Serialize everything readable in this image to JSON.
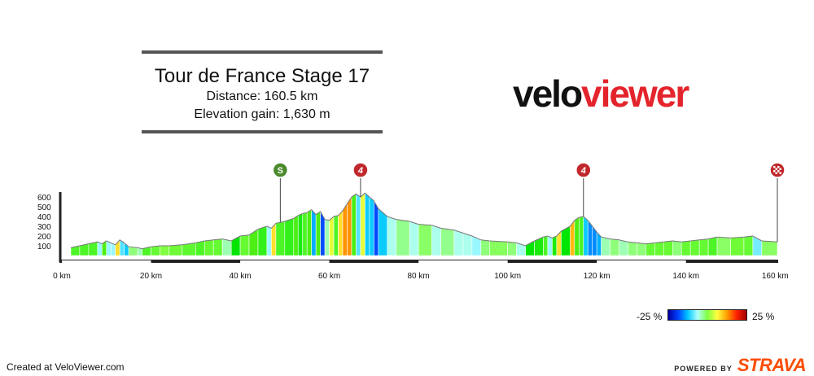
{
  "title": "Tour de France Stage 17",
  "distance_label": "Distance: 160.5 km",
  "elevation_label": "Elevation gain: 1,630 m",
  "logo": {
    "part1": "velo",
    "part2": "viewer"
  },
  "footer": {
    "created": "Created at VeloViewer.com",
    "powered_by": "POWERED BY",
    "brand": "STRAVA"
  },
  "legend": {
    "low": "-25 %",
    "high": "25 %"
  },
  "colors": {
    "accent": "#e4242c",
    "strava": "#fc4c02",
    "sprint": "#4a8a2c",
    "climb": "#c0282b"
  },
  "chart_data": {
    "type": "area",
    "title": "Tour de France Stage 17",
    "xlabel": "",
    "ylabel": "",
    "x_unit": "km",
    "xlim": [
      0,
      160.5
    ],
    "ylim": [
      0,
      650
    ],
    "x_ticks": [
      0,
      20,
      40,
      60,
      80,
      100,
      120,
      140,
      160
    ],
    "x_tick_labels": [
      "0 km",
      "20 km",
      "40 km",
      "60 km",
      "80 km",
      "100 km",
      "120 km",
      "140 km",
      "160 km"
    ],
    "y_ticks": [
      100,
      200,
      300,
      400,
      500,
      600
    ],
    "y_tick_labels": [
      "100",
      "200",
      "300",
      "400",
      "500",
      "600"
    ],
    "profile": [
      [
        2,
        80
      ],
      [
        4,
        100
      ],
      [
        6,
        120
      ],
      [
        8,
        140
      ],
      [
        9,
        120
      ],
      [
        10,
        150
      ],
      [
        11,
        130
      ],
      [
        12,
        110
      ],
      [
        13,
        160
      ],
      [
        14,
        130
      ],
      [
        15,
        90
      ],
      [
        17,
        80
      ],
      [
        18,
        70
      ],
      [
        20,
        90
      ],
      [
        22,
        100
      ],
      [
        24,
        100
      ],
      [
        27,
        110
      ],
      [
        30,
        130
      ],
      [
        32,
        150
      ],
      [
        34,
        160
      ],
      [
        36,
        170
      ],
      [
        38,
        150
      ],
      [
        40,
        200
      ],
      [
        42,
        210
      ],
      [
        44,
        270
      ],
      [
        46,
        300
      ],
      [
        47,
        280
      ],
      [
        48,
        330
      ],
      [
        50,
        350
      ],
      [
        52,
        380
      ],
      [
        53,
        410
      ],
      [
        54,
        430
      ],
      [
        55,
        440
      ],
      [
        56,
        470
      ],
      [
        57,
        420
      ],
      [
        58,
        450
      ],
      [
        59,
        370
      ],
      [
        60,
        360
      ],
      [
        61,
        400
      ],
      [
        62,
        410
      ],
      [
        63,
        460
      ],
      [
        64,
        530
      ],
      [
        65,
        600
      ],
      [
        66,
        630
      ],
      [
        67,
        600
      ],
      [
        68,
        640
      ],
      [
        69,
        600
      ],
      [
        70,
        560
      ],
      [
        71,
        480
      ],
      [
        73,
        400
      ],
      [
        75,
        370
      ],
      [
        78,
        350
      ],
      [
        80,
        320
      ],
      [
        83,
        310
      ],
      [
        85,
        280
      ],
      [
        88,
        260
      ],
      [
        90,
        230
      ],
      [
        92,
        200
      ],
      [
        94,
        160
      ],
      [
        96,
        150
      ],
      [
        100,
        140
      ],
      [
        102,
        130
      ],
      [
        104,
        100
      ],
      [
        106,
        150
      ],
      [
        108,
        190
      ],
      [
        109,
        200
      ],
      [
        110,
        180
      ],
      [
        111,
        200
      ],
      [
        112,
        250
      ],
      [
        114,
        300
      ],
      [
        115,
        360
      ],
      [
        116,
        390
      ],
      [
        117,
        400
      ],
      [
        118,
        360
      ],
      [
        119,
        300
      ],
      [
        120,
        240
      ],
      [
        121,
        190
      ],
      [
        123,
        170
      ],
      [
        125,
        160
      ],
      [
        127,
        140
      ],
      [
        129,
        130
      ],
      [
        131,
        120
      ],
      [
        133,
        130
      ],
      [
        135,
        140
      ],
      [
        137,
        150
      ],
      [
        139,
        140
      ],
      [
        141,
        150
      ],
      [
        143,
        160
      ],
      [
        145,
        170
      ],
      [
        147,
        190
      ],
      [
        150,
        180
      ],
      [
        153,
        190
      ],
      [
        155,
        200
      ],
      [
        157,
        150
      ],
      [
        160.5,
        140
      ]
    ],
    "markers": [
      {
        "km": 49,
        "label": "S",
        "type": "sprint"
      },
      {
        "km": 67,
        "label": "4",
        "type": "climb"
      },
      {
        "km": 117,
        "label": "4",
        "type": "climb"
      },
      {
        "km": 160.5,
        "label": "",
        "type": "finish"
      }
    ],
    "gradient_legend": {
      "min_label": "-25 %",
      "max_label": "25 %"
    }
  }
}
